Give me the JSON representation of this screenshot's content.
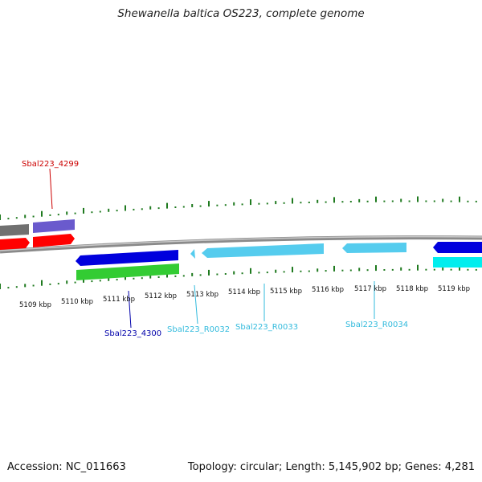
{
  "title": "Shewanella baltica OS223, complete genome",
  "footer": {
    "accession": "Accession: NC_011663",
    "topology": "Topology: circular; Length: 5,145,902 bp; Genes: 4,281"
  },
  "axis": {
    "ticks": [
      "5109 kbp",
      "5110 kbp",
      "5111 kbp",
      "5112 kbp",
      "5113 kbp",
      "5114 kbp",
      "5115 kbp",
      "5116 kbp",
      "5117 kbp",
      "5118 kbp",
      "5119 kbp"
    ]
  },
  "gene_labels": [
    {
      "name": "Sbal223_4299",
      "color": "#cc0000"
    },
    {
      "name": "Sbal223_4300",
      "color": "#0000aa"
    },
    {
      "name": "Sbal223_R0032",
      "color": "#33bbdd"
    },
    {
      "name": "Sbal223_R0033",
      "color": "#33bbdd"
    },
    {
      "name": "Sbal223_R0034",
      "color": "#33bbdd"
    }
  ],
  "colors": {
    "backbone": "#8a8a8a",
    "gc_ticks": "#1f7a1f",
    "cds_reverse": "#0000dd",
    "cds_forward_red": "#ff0000",
    "trna": "#55ccee",
    "gene_green": "#33cc33",
    "gene_purple": "#6a5acd",
    "gene_gray": "#707070",
    "cyan": "#00eeee"
  }
}
